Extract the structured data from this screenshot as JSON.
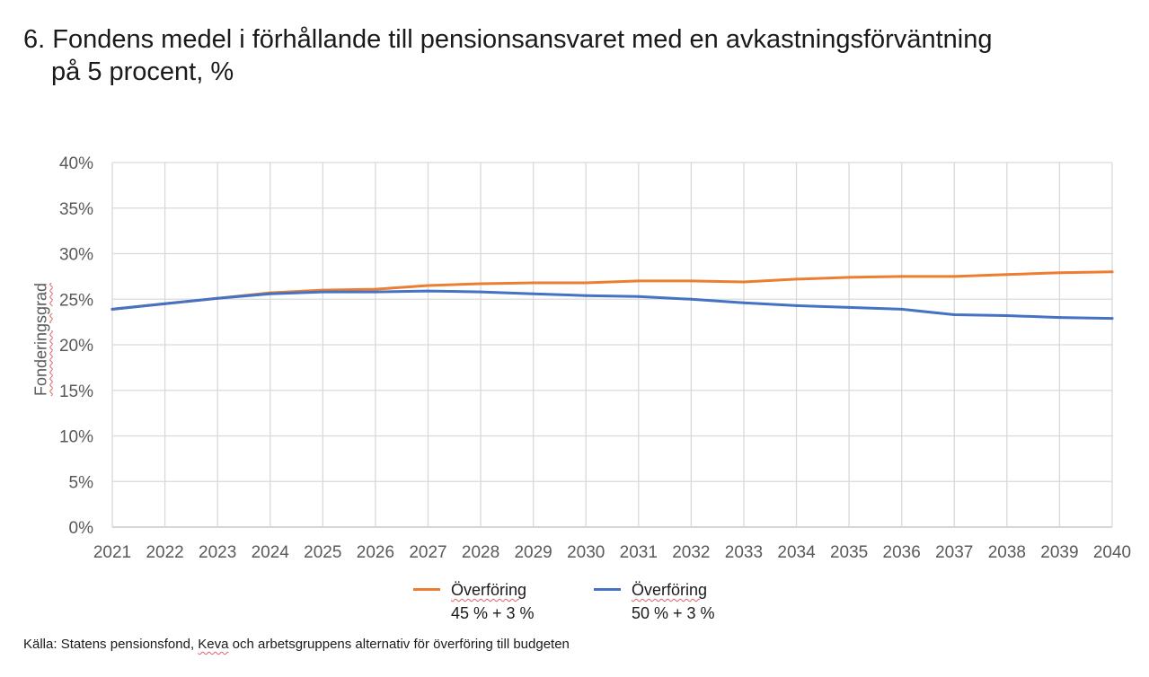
{
  "title": {
    "line1": "6. Fondens medel i förhållande till pensionsansvaret med en avkastningsförväntning",
    "line2": "på 5 procent, %"
  },
  "chart_data": {
    "type": "line",
    "title": "6. Fondens medel i förhållande till pensionsansvaret med en avkastningsförväntning på 5 procent, %",
    "xlabel": "",
    "ylabel": "Fonderingsgrad",
    "x": [
      "2021",
      "2022",
      "2023",
      "2024",
      "2025",
      "2026",
      "2027",
      "2028",
      "2029",
      "2030",
      "2031",
      "2032",
      "2033",
      "2034",
      "2035",
      "2036",
      "2037",
      "2038",
      "2039",
      "2040"
    ],
    "ylim": [
      0,
      40
    ],
    "yticks": [
      0,
      5,
      10,
      15,
      20,
      25,
      30,
      35,
      40
    ],
    "ytick_labels": [
      "0%",
      "5%",
      "10%",
      "15%",
      "20%",
      "25%",
      "30%",
      "35%",
      "40%"
    ],
    "grid": true,
    "legend_position": "bottom",
    "series": [
      {
        "name": "Överföring 45 % + 3 %",
        "color": "#ED7D31",
        "values": [
          23.9,
          24.5,
          25.1,
          25.7,
          26.0,
          26.1,
          26.5,
          26.7,
          26.8,
          26.8,
          27.0,
          27.0,
          26.9,
          27.2,
          27.4,
          27.5,
          27.5,
          27.7,
          27.9,
          28.0
        ]
      },
      {
        "name": "Överföring 50 % + 3 %",
        "color": "#4472C4",
        "values": [
          23.9,
          24.5,
          25.1,
          25.6,
          25.8,
          25.8,
          25.9,
          25.8,
          25.6,
          25.4,
          25.3,
          25.0,
          24.6,
          24.3,
          24.1,
          23.9,
          23.3,
          23.2,
          23.0,
          22.9
        ]
      }
    ]
  },
  "legend": [
    {
      "line1": "Överföring",
      "line2": "45 % + 3 %",
      "color": "#ED7D31"
    },
    {
      "line1": "Överföring",
      "line2": "50 % + 3 %",
      "color": "#4472C4"
    }
  ],
  "source": {
    "prefix": "Källa: Statens pensionsfond, ",
    "keva": "Keva",
    "suffix": " och arbetsgruppens alternativ för överföring till budgeten"
  }
}
